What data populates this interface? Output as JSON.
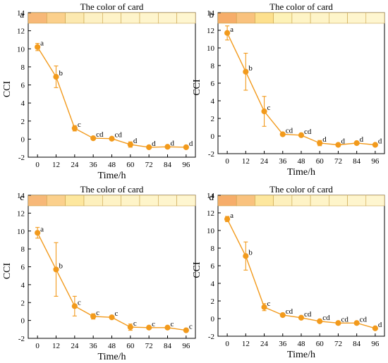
{
  "chart_data": [
    {
      "type": "line",
      "panel_label": "a",
      "card_title": "The color of card",
      "card_colors": [
        "#f7b878",
        "#fbd08c",
        "#fce9b0",
        "#fdf1c4",
        "#fef3c8",
        "#fef4ca",
        "#fef5cd",
        "#fef5ce",
        "#fef6d0"
      ],
      "xlabel": "Time/h",
      "ylabel": "CCI",
      "xlim": [
        -6,
        102
      ],
      "ylim": [
        -2,
        14
      ],
      "x_ticks": [
        "0",
        "12",
        "24",
        "36",
        "48",
        "60",
        "72",
        "84",
        "96"
      ],
      "y_ticks": [
        "-2",
        "0",
        "2",
        "4",
        "6",
        "8",
        "10",
        "12",
        "14"
      ],
      "x": [
        0,
        12,
        24,
        36,
        48,
        60,
        72,
        84,
        96
      ],
      "y": [
        10.2,
        6.9,
        1.2,
        0.1,
        0.05,
        -0.6,
        -0.9,
        -0.85,
        -0.9
      ],
      "error": [
        0.4,
        1.2,
        0.3,
        0.15,
        0.1,
        0.3,
        0.15,
        0.1,
        0.15
      ],
      "labels": [
        "a",
        "b",
        "c",
        "cd",
        "cd",
        "d",
        "d",
        "d",
        "d"
      ],
      "series_color": "#f29a1c"
    },
    {
      "type": "line",
      "panel_label": "b",
      "card_title": "The color of card",
      "card_colors": [
        "#f6ad6a",
        "#f9c27e",
        "#fde08e",
        "#fdf2b8",
        "#fef4c6",
        "#fef4c8",
        "#fef5ca",
        "#fef5cd",
        "#fef6d0"
      ],
      "xlabel": "Time/h",
      "ylabel": "CCI",
      "xlim": [
        -6,
        102
      ],
      "ylim": [
        -2,
        14
      ],
      "x_ticks": [
        "0",
        "12",
        "24",
        "36",
        "48",
        "60",
        "72",
        "84",
        "96"
      ],
      "y_ticks": [
        "-2",
        "0",
        "2",
        "4",
        "6",
        "8",
        "10",
        "12",
        "14"
      ],
      "x": [
        0,
        12,
        24,
        36,
        48,
        60,
        72,
        84,
        96
      ],
      "y": [
        11.7,
        7.3,
        2.8,
        0.2,
        0.1,
        -0.8,
        -1.0,
        -0.8,
        -1.0
      ],
      "error": [
        0.8,
        2.1,
        1.7,
        0.15,
        0.2,
        0.3,
        0.15,
        0.15,
        0.15
      ],
      "labels": [
        "a",
        "b",
        "c",
        "cd",
        "cd",
        "d",
        "d",
        "d",
        "d"
      ],
      "series_color": "#f29a1c"
    },
    {
      "type": "line",
      "panel_label": "c",
      "card_title": "The color of card",
      "card_colors": [
        "#f7b878",
        "#fbd08c",
        "#fde79e",
        "#fdf0bd",
        "#fef3c6",
        "#fef4c8",
        "#fef5ca",
        "#fef5cd",
        "#fef6d0"
      ],
      "xlabel": "Time/h",
      "ylabel": "CCI",
      "xlim": [
        -6,
        102
      ],
      "ylim": [
        -2,
        14
      ],
      "x_ticks": [
        "0",
        "12",
        "24",
        "36",
        "48",
        "60",
        "72",
        "84",
        "96"
      ],
      "y_ticks": [
        "-2",
        "0",
        "2",
        "4",
        "6",
        "8",
        "10",
        "12",
        "14"
      ],
      "x": [
        0,
        12,
        24,
        36,
        48,
        60,
        72,
        84,
        96
      ],
      "y": [
        9.8,
        5.7,
        1.6,
        0.45,
        0.35,
        -0.75,
        -0.8,
        -0.8,
        -1.1
      ],
      "error": [
        0.6,
        3.0,
        1.1,
        0.3,
        0.1,
        0.35,
        0.1,
        0.1,
        0.15
      ],
      "labels": [
        "a",
        "b",
        "c",
        "c",
        "c",
        "c",
        "c",
        "c",
        "c"
      ],
      "series_color": "#f29a1c"
    },
    {
      "type": "line",
      "panel_label": "d",
      "card_title": "The color of card",
      "card_colors": [
        "#f6ad6a",
        "#f9c27e",
        "#fde79e",
        "#fdf0bd",
        "#fef3c6",
        "#fef4c8",
        "#fef5ca",
        "#fef5cd",
        "#fef6d0"
      ],
      "xlabel": "Time/h",
      "ylabel": "CCI",
      "xlim": [
        -6,
        102
      ],
      "ylim": [
        -2,
        14
      ],
      "x_ticks": [
        "0",
        "12",
        "24",
        "36",
        "48",
        "60",
        "72",
        "84",
        "96"
      ],
      "y_ticks": [
        "-2",
        "0",
        "2",
        "4",
        "6",
        "8",
        "10",
        "12",
        "14"
      ],
      "x": [
        0,
        12,
        24,
        36,
        48,
        60,
        72,
        84,
        96
      ],
      "y": [
        11.3,
        7.1,
        1.3,
        0.4,
        0.1,
        -0.3,
        -0.5,
        -0.5,
        -1.1
      ],
      "error": [
        0.3,
        1.6,
        0.4,
        0.15,
        0.15,
        0.1,
        0.1,
        0.1,
        0.15
      ],
      "labels": [
        "a",
        "b",
        "c",
        "cd",
        "cd",
        "cd",
        "cd",
        "cd",
        "d"
      ],
      "series_color": "#f29a1c"
    }
  ]
}
